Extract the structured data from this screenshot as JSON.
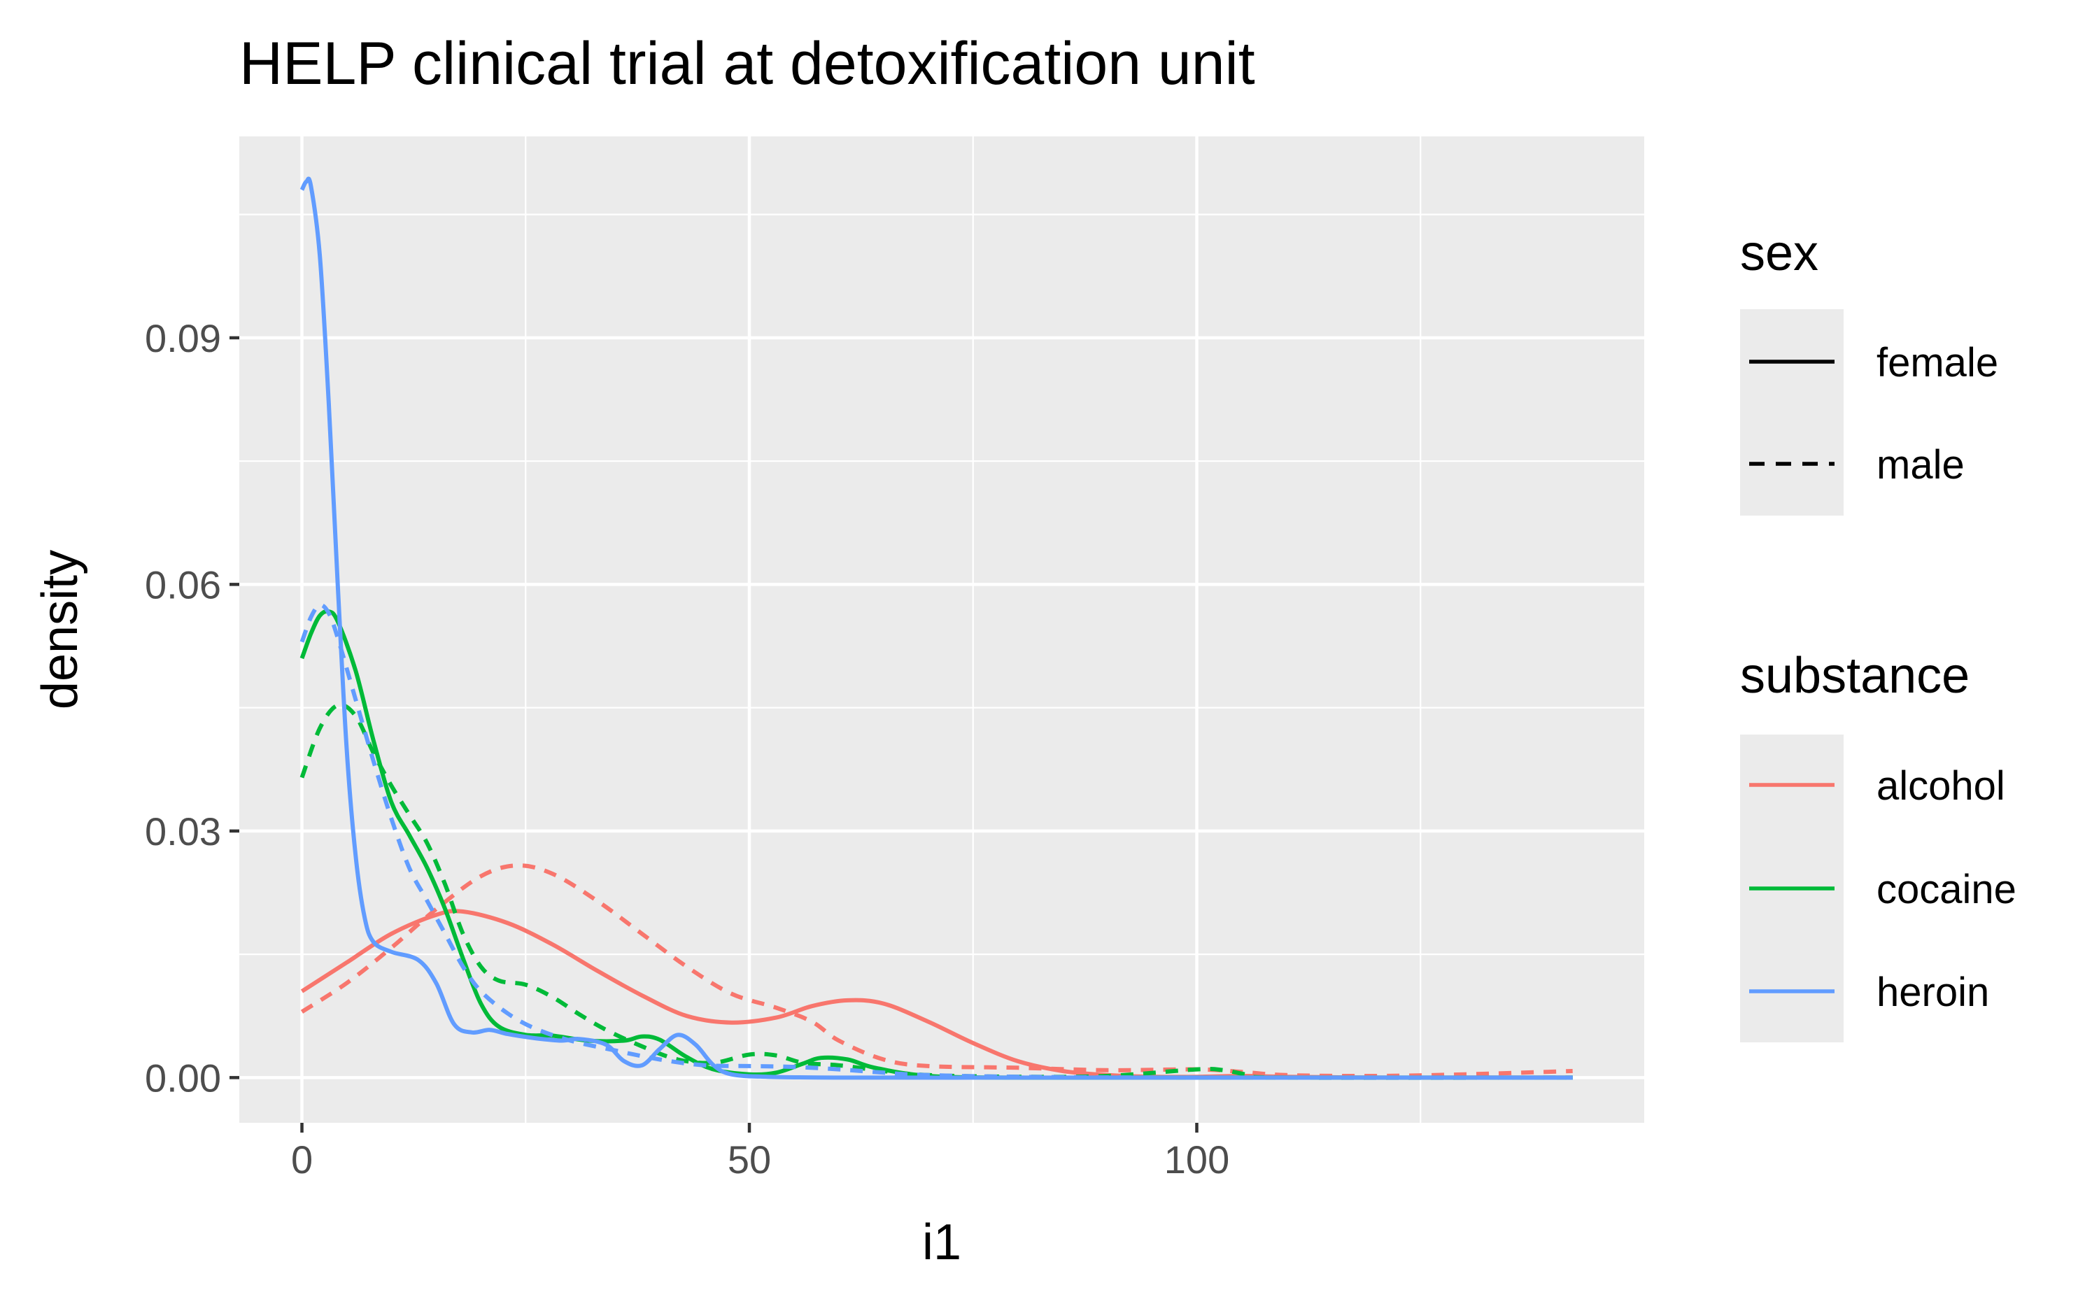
{
  "chart_data": {
    "type": "line",
    "title": "HELP clinical trial at detoxification unit",
    "xlabel": "i1",
    "ylabel": "density",
    "xlim": [
      -7,
      150
    ],
    "ylim": [
      -0.0055,
      0.1145
    ],
    "x_ticks": [
      0,
      50,
      100
    ],
    "x_tick_labels": [
      "0",
      "50",
      "100"
    ],
    "x_minor_ticks": [
      25,
      75,
      125
    ],
    "y_ticks": [
      0,
      0.03,
      0.06,
      0.09
    ],
    "y_tick_labels": [
      "0.00",
      "0.03",
      "0.06",
      "0.09"
    ],
    "y_minor_ticks": [
      0.015,
      0.045,
      0.075,
      0.105
    ],
    "grid": true,
    "panel_background": "#ebebeb",
    "legend_position": "right",
    "legends": {
      "sex": {
        "title": "sex",
        "items": [
          {
            "label": "female",
            "linetype": "solid"
          },
          {
            "label": "male",
            "linetype": "dashed"
          }
        ]
      },
      "substance": {
        "title": "substance",
        "items": [
          {
            "label": "alcohol",
            "color": "#F8766D"
          },
          {
            "label": "cocaine",
            "color": "#00BA38"
          },
          {
            "label": "heroin",
            "color": "#619CFF"
          }
        ]
      }
    },
    "series": [
      {
        "substance": "alcohol",
        "sex": "female",
        "color": "#F8766D",
        "linetype": "solid",
        "points": [
          [
            0,
            0.0105
          ],
          [
            5,
            0.014
          ],
          [
            10,
            0.0175
          ],
          [
            15,
            0.0198
          ],
          [
            18,
            0.0202
          ],
          [
            23,
            0.0188
          ],
          [
            28,
            0.0162
          ],
          [
            33,
            0.013
          ],
          [
            38,
            0.01
          ],
          [
            43,
            0.0075
          ],
          [
            48,
            0.0067
          ],
          [
            53,
            0.0073
          ],
          [
            57,
            0.0087
          ],
          [
            61,
            0.0094
          ],
          [
            65,
            0.009
          ],
          [
            70,
            0.0068
          ],
          [
            75,
            0.0042
          ],
          [
            80,
            0.002
          ],
          [
            85,
            0.0008
          ],
          [
            90,
            0.0003
          ],
          [
            95,
            0.0001
          ],
          [
            100,
            0.0001
          ],
          [
            105,
            0.0002
          ],
          [
            110,
            0.0001
          ],
          [
            120,
            0.0
          ],
          [
            130,
            0.0
          ],
          [
            142,
            0.0
          ]
        ]
      },
      {
        "substance": "alcohol",
        "sex": "male",
        "color": "#F8766D",
        "linetype": "dashed",
        "points": [
          [
            0,
            0.008
          ],
          [
            5,
            0.0115
          ],
          [
            10,
            0.0158
          ],
          [
            15,
            0.0205
          ],
          [
            20,
            0.0245
          ],
          [
            24,
            0.0258
          ],
          [
            28,
            0.0248
          ],
          [
            33,
            0.0215
          ],
          [
            38,
            0.0175
          ],
          [
            43,
            0.0135
          ],
          [
            48,
            0.0102
          ],
          [
            53,
            0.0085
          ],
          [
            57,
            0.0068
          ],
          [
            60,
            0.0045
          ],
          [
            65,
            0.0022
          ],
          [
            70,
            0.0014
          ],
          [
            80,
            0.0012
          ],
          [
            90,
            0.0009
          ],
          [
            100,
            0.001
          ],
          [
            105,
            0.0007
          ],
          [
            110,
            0.0003
          ],
          [
            120,
            0.0002
          ],
          [
            130,
            0.0004
          ],
          [
            142,
            0.0008
          ]
        ]
      },
      {
        "substance": "cocaine",
        "sex": "female",
        "color": "#00BA38",
        "linetype": "solid",
        "points": [
          [
            0,
            0.051
          ],
          [
            1,
            0.054
          ],
          [
            2,
            0.0562
          ],
          [
            3,
            0.0567
          ],
          [
            4,
            0.0555
          ],
          [
            6,
            0.0495
          ],
          [
            8,
            0.041
          ],
          [
            10,
            0.0335
          ],
          [
            12,
            0.0295
          ],
          [
            14,
            0.0255
          ],
          [
            16,
            0.0205
          ],
          [
            18,
            0.0145
          ],
          [
            20,
            0.009
          ],
          [
            22,
            0.0062
          ],
          [
            25,
            0.0052
          ],
          [
            28,
            0.0051
          ],
          [
            32,
            0.0045
          ],
          [
            36,
            0.0045
          ],
          [
            38,
            0.005
          ],
          [
            40,
            0.0046
          ],
          [
            43,
            0.0025
          ],
          [
            46,
            0.001
          ],
          [
            50,
            0.0004
          ],
          [
            53,
            0.0006
          ],
          [
            56,
            0.0017
          ],
          [
            58,
            0.0024
          ],
          [
            61,
            0.0022
          ],
          [
            64,
            0.0012
          ],
          [
            70,
            0.0002
          ],
          [
            80,
            0.0
          ],
          [
            100,
            0.0
          ],
          [
            142,
            0.0
          ]
        ]
      },
      {
        "substance": "cocaine",
        "sex": "male",
        "color": "#00BA38",
        "linetype": "dashed",
        "points": [
          [
            0,
            0.0365
          ],
          [
            2,
            0.0425
          ],
          [
            4,
            0.0453
          ],
          [
            6,
            0.044
          ],
          [
            8,
            0.0395
          ],
          [
            10,
            0.0355
          ],
          [
            12,
            0.032
          ],
          [
            14,
            0.0285
          ],
          [
            16,
            0.0235
          ],
          [
            18,
            0.0175
          ],
          [
            20,
            0.0135
          ],
          [
            22,
            0.0118
          ],
          [
            25,
            0.0113
          ],
          [
            28,
            0.0098
          ],
          [
            31,
            0.0077
          ],
          [
            34,
            0.0058
          ],
          [
            38,
            0.0038
          ],
          [
            42,
            0.0022
          ],
          [
            46,
            0.0018
          ],
          [
            50,
            0.0028
          ],
          [
            53,
            0.0027
          ],
          [
            56,
            0.0018
          ],
          [
            60,
            0.0015
          ],
          [
            65,
            0.0008
          ],
          [
            70,
            0.0003
          ],
          [
            80,
            0.0001
          ],
          [
            90,
            0.0002
          ],
          [
            100,
            0.001
          ],
          [
            103,
            0.0009
          ],
          [
            106,
            0.0003
          ],
          [
            110,
            0.0
          ],
          [
            142,
            0.0
          ]
        ]
      },
      {
        "substance": "heroin",
        "sex": "female",
        "color": "#619CFF",
        "linetype": "solid",
        "points": [
          [
            0,
            0.108
          ],
          [
            0.5,
            0.109
          ],
          [
            1,
            0.1085
          ],
          [
            2,
            0.1
          ],
          [
            3,
            0.082
          ],
          [
            4,
            0.06
          ],
          [
            5,
            0.04
          ],
          [
            6,
            0.027
          ],
          [
            7,
            0.0195
          ],
          [
            8,
            0.0165
          ],
          [
            10,
            0.0153
          ],
          [
            13,
            0.0143
          ],
          [
            15,
            0.0115
          ],
          [
            17,
            0.0065
          ],
          [
            19,
            0.0055
          ],
          [
            21,
            0.0058
          ],
          [
            23,
            0.0053
          ],
          [
            26,
            0.0048
          ],
          [
            29,
            0.0045
          ],
          [
            31,
            0.0047
          ],
          [
            34,
            0.004
          ],
          [
            36,
            0.002
          ],
          [
            38,
            0.0015
          ],
          [
            40,
            0.0035
          ],
          [
            42,
            0.0052
          ],
          [
            44,
            0.004
          ],
          [
            46,
            0.0015
          ],
          [
            48,
            0.0004
          ],
          [
            52,
            0.0001
          ],
          [
            60,
            0.0
          ],
          [
            80,
            0.0
          ],
          [
            100,
            0.0
          ],
          [
            142,
            0.0
          ]
        ]
      },
      {
        "substance": "heroin",
        "sex": "male",
        "color": "#619CFF",
        "linetype": "dashed",
        "points": [
          [
            0,
            0.053
          ],
          [
            1,
            0.056
          ],
          [
            2,
            0.0575
          ],
          [
            3,
            0.0565
          ],
          [
            4,
            0.0535
          ],
          [
            6,
            0.046
          ],
          [
            8,
            0.0385
          ],
          [
            10,
            0.0315
          ],
          [
            12,
            0.0255
          ],
          [
            14,
            0.0215
          ],
          [
            16,
            0.0175
          ],
          [
            18,
            0.0135
          ],
          [
            20,
            0.0105
          ],
          [
            23,
            0.0078
          ],
          [
            26,
            0.006
          ],
          [
            30,
            0.0045
          ],
          [
            35,
            0.0033
          ],
          [
            40,
            0.0022
          ],
          [
            45,
            0.0015
          ],
          [
            50,
            0.0014
          ],
          [
            55,
            0.0013
          ],
          [
            60,
            0.001
          ],
          [
            65,
            0.0006
          ],
          [
            70,
            0.0003
          ],
          [
            80,
            0.0001
          ],
          [
            100,
            0.0
          ],
          [
            142,
            0.0
          ]
        ]
      }
    ]
  }
}
